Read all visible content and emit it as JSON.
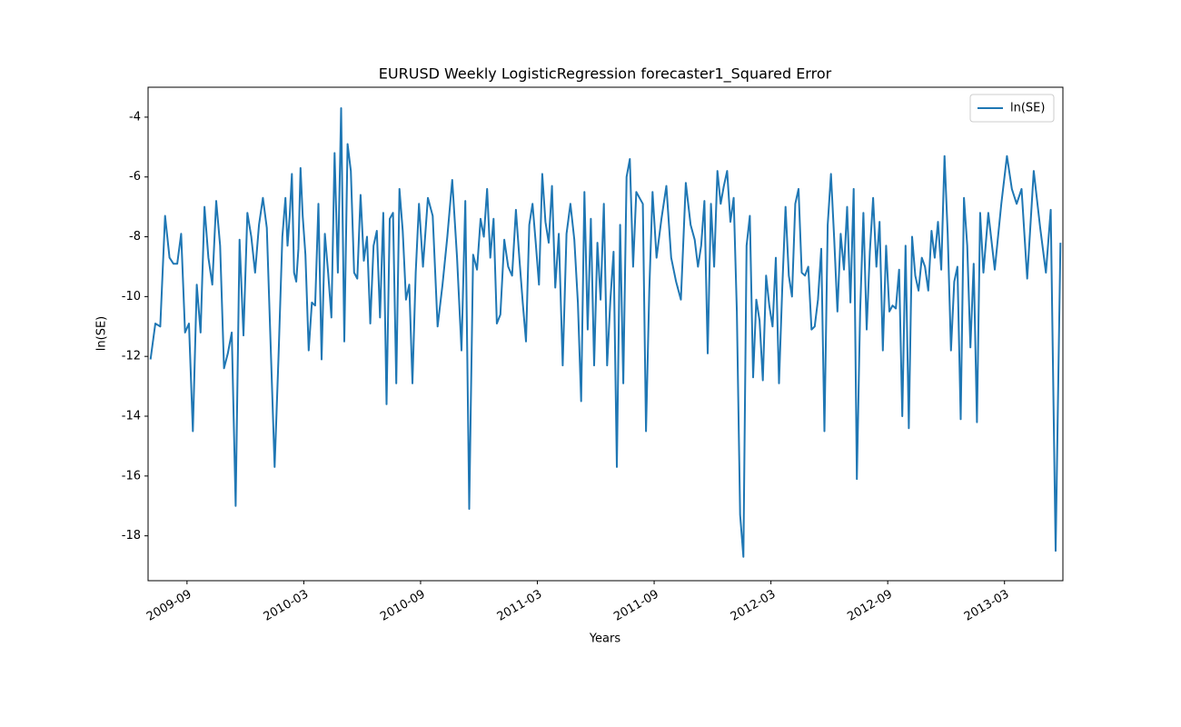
{
  "chart_data": {
    "type": "line",
    "title": "EURUSD Weekly LogisticRegression forecaster1_Squared Error",
    "xlabel": "Years",
    "ylabel": "ln(SE)",
    "x": [
      "2009-07",
      "2009-07",
      "2009-07",
      "2009-07",
      "2009-08",
      "2009-08",
      "2009-08",
      "2009-08",
      "2009-08",
      "2009-09",
      "2009-09",
      "2009-09",
      "2009-09",
      "2009-09",
      "2009-10",
      "2009-10",
      "2009-10",
      "2009-10",
      "2009-10",
      "2009-11",
      "2009-11",
      "2009-11",
      "2009-11",
      "2009-11",
      "2009-12",
      "2009-12",
      "2009-12",
      "2009-12",
      "2009-12",
      "2010-01",
      "2010-01",
      "2010-01",
      "2010-01",
      "2010-01",
      "2010-02",
      "2010-02",
      "2010-02",
      "2010-02",
      "2010-02",
      "2010-02",
      "2010-02",
      "2010-02",
      "2010-02",
      "2010-03",
      "2010-03",
      "2010-03",
      "2010-03",
      "2010-03",
      "2010-03",
      "2010-04",
      "2010-04",
      "2010-04",
      "2010-04",
      "2010-04",
      "2010-04",
      "2010-05",
      "2010-05",
      "2010-05",
      "2010-05",
      "2010-05",
      "2010-05",
      "2010-06",
      "2010-06",
      "2010-06",
      "2010-06",
      "2010-06",
      "2010-06",
      "2010-07",
      "2010-07",
      "2010-07",
      "2010-07",
      "2010-07",
      "2010-07",
      "2010-08",
      "2010-08",
      "2010-08",
      "2010-08",
      "2010-08",
      "2010-08",
      "2010-09",
      "2010-09",
      "2010-09",
      "2010-09",
      "2010-10",
      "2010-10",
      "2010-10",
      "2010-10",
      "2010-11",
      "2010-11",
      "2010-11",
      "2010-11",
      "2010-11",
      "2010-12",
      "2010-12",
      "2010-12",
      "2010-12",
      "2010-12",
      "2010-12",
      "2011-01",
      "2011-01",
      "2011-01",
      "2011-01",
      "2011-01",
      "2011-02",
      "2011-02",
      "2011-02",
      "2011-02",
      "2011-02",
      "2011-02",
      "2011-03",
      "2011-03",
      "2011-03",
      "2011-03",
      "2011-03",
      "2011-03",
      "2011-04",
      "2011-04",
      "2011-04",
      "2011-04",
      "2011-04",
      "2011-05",
      "2011-05",
      "2011-05",
      "2011-05",
      "2011-05",
      "2011-05",
      "2011-06",
      "2011-06",
      "2011-06",
      "2011-06",
      "2011-06",
      "2011-06",
      "2011-07",
      "2011-07",
      "2011-07",
      "2011-07",
      "2011-07",
      "2011-07",
      "2011-08",
      "2011-08",
      "2011-08",
      "2011-08",
      "2011-08",
      "2011-08",
      "2011-09",
      "2011-09",
      "2011-09",
      "2011-09",
      "2011-10",
      "2011-10",
      "2011-10",
      "2011-10",
      "2011-11",
      "2011-11",
      "2011-11",
      "2011-11",
      "2011-11",
      "2011-11",
      "2011-12",
      "2011-12",
      "2011-12",
      "2011-12",
      "2011-12",
      "2011-12",
      "2012-01",
      "2012-01",
      "2012-01",
      "2012-01",
      "2012-01",
      "2012-01",
      "2012-02",
      "2012-02",
      "2012-02",
      "2012-02",
      "2012-02",
      "2012-02",
      "2012-03",
      "2012-03",
      "2012-03",
      "2012-03",
      "2012-03",
      "2012-03",
      "2012-04",
      "2012-04",
      "2012-04",
      "2012-04",
      "2012-04",
      "2012-04",
      "2012-05",
      "2012-05",
      "2012-05",
      "2012-05",
      "2012-05",
      "2012-05",
      "2012-06",
      "2012-06",
      "2012-06",
      "2012-06",
      "2012-06",
      "2012-06",
      "2012-07",
      "2012-07",
      "2012-07",
      "2012-07",
      "2012-07",
      "2012-07",
      "2012-08",
      "2012-08",
      "2012-08",
      "2012-08",
      "2012-08",
      "2012-08",
      "2012-09",
      "2012-09",
      "2012-09",
      "2012-09",
      "2012-09",
      "2012-09",
      "2012-10",
      "2012-10",
      "2012-10",
      "2012-10",
      "2012-10",
      "2012-10",
      "2012-11",
      "2012-11",
      "2012-11",
      "2012-11",
      "2012-11",
      "2012-11",
      "2012-12",
      "2012-12",
      "2012-12",
      "2012-12",
      "2012-12",
      "2012-12",
      "2013-01",
      "2013-01",
      "2013-01",
      "2013-01",
      "2013-01",
      "2013-01",
      "2013-02",
      "2013-02",
      "2013-02",
      "2013-03",
      "2013-03",
      "2013-03",
      "2013-03",
      "2013-04",
      "2013-04",
      "2013-04",
      "2013-05",
      "2013-05",
      "2013-05",
      "2013-05"
    ],
    "series": [
      {
        "name": "ln(SE)",
        "color": "#1f77b4",
        "values": [
          -12.1,
          -10.9,
          -11.0,
          -7.3,
          -8.7,
          -8.9,
          -8.9,
          -7.9,
          -11.2,
          -10.9,
          -14.5,
          -9.6,
          -11.2,
          -7.0,
          -8.7,
          -9.6,
          -6.8,
          -8.3,
          -12.4,
          -11.9,
          -11.2,
          -17.0,
          -8.1,
          -11.3,
          -7.2,
          -8.0,
          -9.2,
          -7.6,
          -6.7,
          -7.7,
          -11.7,
          -15.7,
          -12.0,
          -8.0,
          -6.7,
          -8.3,
          -7.3,
          -5.9,
          -9.2,
          -9.5,
          -8.4,
          -5.7,
          -7.3,
          -8.6,
          -11.8,
          -10.2,
          -10.3,
          -6.9,
          -12.1,
          -7.9,
          -9.2,
          -10.7,
          -5.2,
          -9.2,
          -3.7,
          -11.5,
          -4.9,
          -5.8,
          -9.2,
          -9.4,
          -6.6,
          -8.8,
          -8.0,
          -10.9,
          -8.3,
          -7.8,
          -10.7,
          -7.2,
          -13.6,
          -7.4,
          -7.2,
          -12.9,
          -6.4,
          -7.8,
          -10.1,
          -9.6,
          -12.9,
          -9.2,
          -6.9,
          -9.0,
          -6.7,
          -7.3,
          -11.0,
          -9.6,
          -8.0,
          -6.1,
          -8.7,
          -11.8,
          -6.8,
          -17.1,
          -8.6,
          -9.1,
          -7.4,
          -8.0,
          -6.4,
          -8.7,
          -7.4,
          -10.9,
          -10.6,
          -8.1,
          -9.0,
          -9.3,
          -7.1,
          -8.8,
          -10.2,
          -11.5,
          -7.6,
          -6.9,
          -8.2,
          -9.6,
          -5.9,
          -7.5,
          -8.2,
          -6.3,
          -9.7,
          -7.9,
          -12.3,
          -7.9,
          -6.9,
          -8.1,
          -10.2,
          -13.5,
          -6.5,
          -11.1,
          -7.4,
          -12.3,
          -8.2,
          -10.1,
          -6.9,
          -12.3,
          -10.1,
          -8.5,
          -15.7,
          -7.6,
          -12.9,
          -6.0,
          -5.4,
          -9.0,
          -6.5,
          -6.7,
          -6.9,
          -14.5,
          -9.8,
          -6.5,
          -8.7,
          -7.4,
          -6.3,
          -8.7,
          -9.5,
          -10.1,
          -6.2,
          -7.6,
          -8.1,
          -9.0,
          -8.3,
          -6.8,
          -11.9,
          -6.9,
          -9.0,
          -5.8,
          -6.9,
          -6.3,
          -5.8,
          -7.5,
          -6.7,
          -10.5,
          -17.3,
          -18.7,
          -8.3,
          -7.3,
          -12.7,
          -10.1,
          -10.8,
          -12.8,
          -9.3,
          -10.3,
          -11.0,
          -8.7,
          -12.9,
          -9.7,
          -7.0,
          -9.3,
          -10.0,
          -6.9,
          -6.4,
          -9.2,
          -9.3,
          -9.0,
          -11.1,
          -11.0,
          -10.1,
          -8.4,
          -14.5,
          -7.6,
          -5.9,
          -8.1,
          -10.5,
          -7.9,
          -9.1,
          -7.0,
          -10.2,
          -6.4,
          -16.1,
          -10.5,
          -7.2,
          -11.1,
          -8.5,
          -6.7,
          -9.0,
          -7.5,
          -11.8,
          -8.3,
          -10.5,
          -10.3,
          -10.4,
          -9.1,
          -14.0,
          -8.3,
          -14.4,
          -8.0,
          -9.3,
          -9.8,
          -8.7,
          -9.0,
          -9.8,
          -7.8,
          -8.7,
          -7.5,
          -9.1,
          -5.3,
          -7.9,
          -11.8,
          -9.5,
          -9.0,
          -14.1,
          -6.7,
          -8.3,
          -11.7,
          -8.9,
          -14.2,
          -7.2,
          -9.2,
          -7.2,
          -9.1,
          -6.9,
          -5.3,
          -6.4,
          -6.9,
          -6.4,
          -9.4,
          -5.8,
          -7.7,
          -9.2,
          -7.1,
          -18.5,
          -8.2
        ]
      }
    ],
    "xlim": [
      "2009-07",
      "2013-05"
    ],
    "xticks": [
      "2009-09",
      "2010-03",
      "2010-09",
      "2011-03",
      "2011-09",
      "2012-03",
      "2012-09",
      "2013-03"
    ],
    "ylim": [
      -19.5,
      -3.0
    ],
    "yticks": [
      -4,
      -6,
      -8,
      -10,
      -12,
      -14,
      -16,
      -18
    ],
    "legend": "upper right",
    "grid": false
  }
}
